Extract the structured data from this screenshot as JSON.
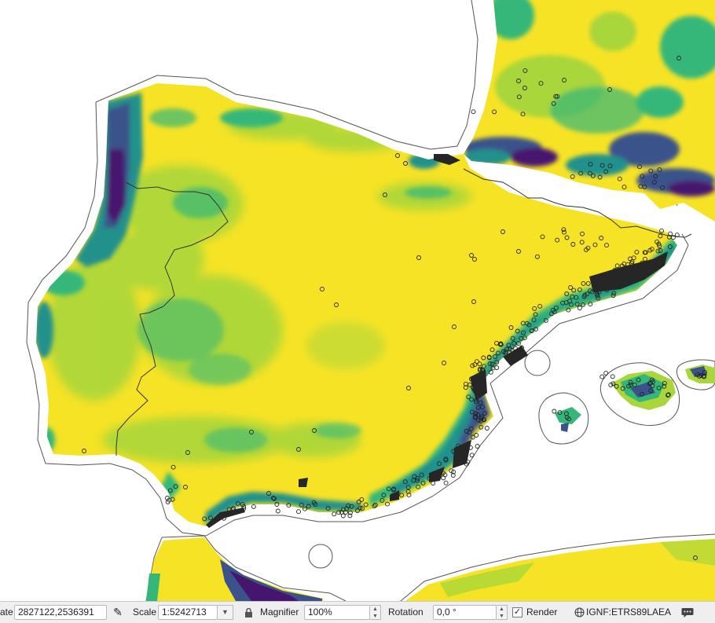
{
  "map": {
    "colors": {
      "land": "#f7e326",
      "green_light": "#a9d63a",
      "green": "#35b779",
      "teal": "#21918c",
      "blue": "#3b528b",
      "purple": "#46166e",
      "points": "#222222",
      "boundary": "#333333",
      "buffer": "#555555",
      "sea": "#ffffff"
    },
    "layers": [
      "raster-suitability",
      "country-boundaries",
      "coastline-buffer",
      "occurrence-points"
    ]
  },
  "statusbar": {
    "coordinate_label": "ate",
    "coordinate_value": "2827122,2536391",
    "scale_label": "Scale",
    "scale_value": "1:5242713",
    "magnifier_label": "Magnifier",
    "magnifier_value": "100%",
    "rotation_label": "Rotation",
    "rotation_value": "0,0 °",
    "render_label": "Render",
    "render_checked": true,
    "crs_value": "IGNF:ETRS89LAEA"
  }
}
